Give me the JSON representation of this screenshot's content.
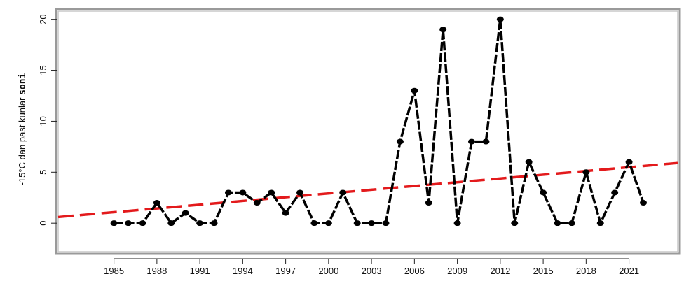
{
  "chart_data": {
    "type": "line",
    "title": "",
    "xlabel": "",
    "ylabel": {
      "prefix": "-15°C dan past kunlar ",
      "bold": "soni"
    },
    "x": [
      1985,
      1986,
      1987,
      1988,
      1989,
      1990,
      1991,
      1992,
      1993,
      1994,
      1995,
      1996,
      1997,
      1998,
      1999,
      2000,
      2001,
      2002,
      2003,
      2004,
      2005,
      2006,
      2007,
      2008,
      2009,
      2010,
      2011,
      2012,
      2013,
      2014,
      2015,
      2016,
      2017,
      2018,
      2019,
      2020,
      2021,
      2022
    ],
    "series": [
      {
        "values": [
          0,
          0,
          0,
          2,
          0,
          1,
          0,
          0,
          3,
          3,
          2,
          3,
          1,
          3,
          0,
          0,
          3,
          0,
          0,
          0,
          8,
          13,
          2,
          19,
          0,
          8,
          8,
          20,
          0,
          6,
          3,
          0,
          0,
          5,
          0,
          3,
          6,
          2
        ],
        "color": "#000000"
      }
    ],
    "trend": {
      "x": [
        1981.1,
        2024.4
      ],
      "y": [
        0.6,
        5.9
      ],
      "color": "#e31a1c",
      "style": "dashed"
    },
    "xlim": [
      1981.1,
      2024.4
    ],
    "ylim": [
      -2.8,
      20.8
    ],
    "xticks": [
      1985,
      1988,
      1991,
      1994,
      1997,
      2000,
      2003,
      2006,
      2009,
      2012,
      2015,
      2018,
      2021
    ],
    "yticks": [
      0,
      5,
      10,
      15,
      20
    ],
    "grid": false,
    "legend": "none"
  }
}
